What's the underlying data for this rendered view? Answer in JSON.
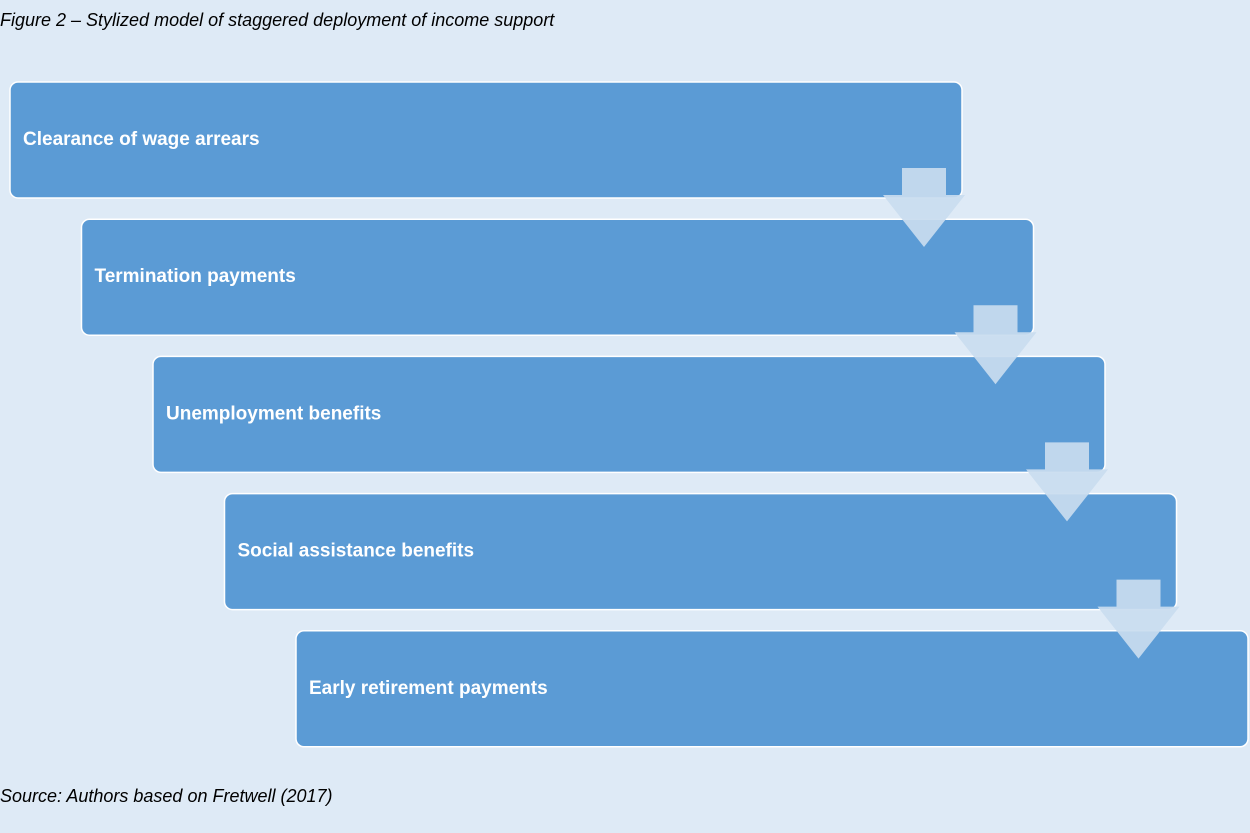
{
  "title": "Figure 2 – Stylized model of staggered deployment of income support",
  "nodes": [
    {
      "label": "Clearance of wage arrears"
    },
    {
      "label": "Termination payments"
    },
    {
      "label": "Unemployment benefits"
    },
    {
      "label": "Social assistance benefits"
    },
    {
      "label": "Early retirement payments"
    }
  ],
  "source": "Source: Authors based on Fretwell (2017)"
}
